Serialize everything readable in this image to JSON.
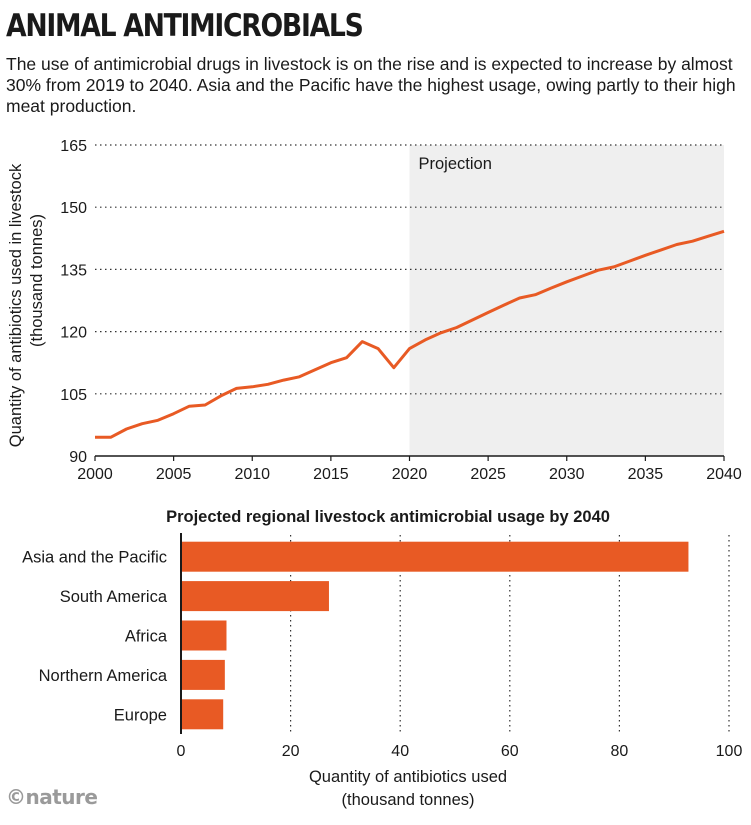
{
  "header": {
    "title": "ANIMAL ANTIMICROBIALS",
    "subtitle": "The use of antimicrobial drugs in livestock is on the rise and is expected to increase by almost 30% from 2019 to 2040. Asia and the Pacific have the highest usage, owing partly to their high meat production."
  },
  "footer": {
    "logo": "©nature"
  },
  "chart_data": [
    {
      "type": "line",
      "title": "",
      "ylabel_lines": [
        "Quantity of antibiotics used in livestock",
        "(thousand tonnes)"
      ],
      "xlabel": "",
      "xlim": [
        2000,
        2040
      ],
      "ylim": [
        90,
        165
      ],
      "xticks": [
        2000,
        2005,
        2010,
        2015,
        2020,
        2025,
        2030,
        2035,
        2040
      ],
      "yticks": [
        90,
        105,
        120,
        135,
        150,
        165
      ],
      "grid": "horizontal dotted",
      "shaded_region": {
        "label": "Projection",
        "from": 2020,
        "to": 2040,
        "color": "#efefef"
      },
      "series": [
        {
          "color": "#e85a24",
          "x": [
            2000,
            2001,
            2002,
            2003,
            2004,
            2005,
            2006,
            2007,
            2008,
            2009,
            2010,
            2011,
            2012,
            2013,
            2014,
            2015,
            2016,
            2017,
            2018,
            2019,
            2020,
            2021,
            2022,
            2023,
            2024,
            2025,
            2026,
            2027,
            2028,
            2029,
            2030,
            2031,
            2032,
            2033,
            2034,
            2035,
            2036,
            2037,
            2038,
            2039,
            2040
          ],
          "y": [
            94.5,
            94.5,
            96.5,
            97.8,
            98.6,
            100.2,
            102.0,
            102.3,
            104.5,
            106.3,
            106.7,
            107.3,
            108.3,
            109.1,
            110.8,
            112.5,
            113.7,
            117.6,
            115.9,
            111.3,
            115.9,
            118.0,
            119.7,
            121.0,
            122.8,
            124.6,
            126.4,
            128.1,
            128.9,
            130.5,
            132.0,
            133.4,
            134.8,
            135.6,
            137.0,
            138.4,
            139.7,
            141.0,
            141.8,
            143.0,
            144.2
          ]
        }
      ]
    },
    {
      "type": "bar",
      "orientation": "horizontal",
      "title": "Projected regional livestock antimicrobial usage by 2040",
      "xlabel_lines": [
        "Quantity of antibiotics used",
        "(thousand tonnes)"
      ],
      "xlim": [
        0,
        100
      ],
      "xticks": [
        0,
        20,
        40,
        60,
        80,
        100
      ],
      "grid": "vertical dotted",
      "color": "#e85a24",
      "categories": [
        "Asia and the Pacific",
        "South America",
        "Africa",
        "Northern America",
        "Europe"
      ],
      "values": [
        92.6,
        27.0,
        8.3,
        8.0,
        7.7
      ]
    }
  ]
}
